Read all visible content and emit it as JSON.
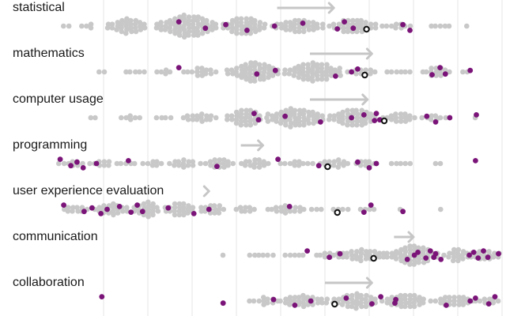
{
  "chart_data": {
    "type": "beeswarm",
    "colors": {
      "dot": "#c8c8c8",
      "highlight": "#7b1479",
      "marker_stroke": "#111111",
      "arrow": "#c6c6c6",
      "grid": "#e6e6e6"
    },
    "x_range": [
      0,
      100
    ],
    "grid_values": [
      10,
      20,
      30,
      40,
      50,
      60,
      70,
      80,
      90,
      100
    ],
    "rows": [
      {
        "label": "statistical",
        "arrow": {
          "from": 49.2,
          "to": 62.0
        },
        "marker": 69.4,
        "highlights": [
          27.0,
          33.0,
          37.6,
          42.4,
          48.6,
          55.0,
          62.8,
          64.4,
          66.4,
          77.6,
          79.2
        ],
        "groups": [
          [
            1.0,
            3.0,
            0.6
          ],
          [
            5.0,
            8.0,
            1.6
          ],
          [
            11.0,
            20.0,
            4.2
          ],
          [
            22.0,
            36.0,
            6.5
          ],
          [
            37.0,
            47.0,
            5.2
          ],
          [
            48.0,
            60.0,
            4.0
          ],
          [
            61.0,
            72.0,
            4.2
          ],
          [
            73.0,
            80.0,
            2.0
          ],
          [
            84.0,
            89.0,
            1.2
          ],
          [
            92.0,
            93.0,
            0.6
          ]
        ]
      },
      {
        "label": "mathematics",
        "arrow": {
          "from": 56.6,
          "to": 70.6
        },
        "marker": 69.0,
        "highlights": [
          27.0,
          44.6,
          48.8,
          62.4,
          66.0,
          67.4,
          84.2,
          86.0,
          87.2,
          92.8
        ],
        "groups": [
          [
            9.0,
            11.0,
            0.6
          ],
          [
            15.0,
            20.0,
            1.2
          ],
          [
            22.0,
            26.0,
            1.6
          ],
          [
            28.0,
            36.0,
            2.4
          ],
          [
            38.0,
            50.0,
            6.0
          ],
          [
            51.0,
            64.0,
            5.5
          ],
          [
            65.0,
            72.0,
            2.6
          ],
          [
            74.0,
            80.0,
            1.4
          ],
          [
            82.0,
            89.0,
            3.2
          ],
          [
            91.0,
            93.0,
            0.6
          ]
        ]
      },
      {
        "label": "computer usage",
        "arrow": {
          "from": 56.6,
          "to": 69.6
        },
        "marker": 73.4,
        "highlights": [
          44.0,
          45.0,
          51.0,
          59.0,
          66.0,
          68.8,
          71.2,
          71.6,
          72.4,
          83.0,
          85.0,
          88.2,
          94.2
        ],
        "groups": [
          [
            7.0,
            9.0,
            0.6
          ],
          [
            14.0,
            19.0,
            1.4
          ],
          [
            22.0,
            26.0,
            1.4
          ],
          [
            28.0,
            36.0,
            2.4
          ],
          [
            38.0,
            46.0,
            4.8
          ],
          [
            47.0,
            60.0,
            5.5
          ],
          [
            61.0,
            72.0,
            5.0
          ],
          [
            73.0,
            81.0,
            3.2
          ],
          [
            82.0,
            88.0,
            1.8
          ],
          [
            94.0,
            95.0,
            0.3
          ]
        ]
      },
      {
        "label": "programming",
        "arrow": {
          "from": 41.0,
          "to": 46.0
        },
        "marker": 60.6,
        "highlights": [
          0.2,
          2.6,
          4.0,
          5.4,
          8.4,
          15.6,
          35.6,
          49.4,
          58.6,
          67.4,
          70.0,
          71.6,
          94.0
        ],
        "groups": [
          [
            0.0,
            6.0,
            1.8
          ],
          [
            7.0,
            12.0,
            2.2
          ],
          [
            13.0,
            18.0,
            1.8
          ],
          [
            19.0,
            24.0,
            1.6
          ],
          [
            25.0,
            31.0,
            2.4
          ],
          [
            32.0,
            40.0,
            3.0
          ],
          [
            41.0,
            48.0,
            2.6
          ],
          [
            50.0,
            58.0,
            2.0
          ],
          [
            59.0,
            66.0,
            2.6
          ],
          [
            67.0,
            72.0,
            1.6
          ],
          [
            75.0,
            80.0,
            0.6
          ],
          [
            85.0,
            87.0,
            0.6
          ]
        ]
      },
      {
        "label": "user experience evaluation",
        "arrow": {
          "from": 33.8,
          "to": 33.8
        },
        "marker": 62.8,
        "highlights": [
          1.0,
          5.6,
          7.4,
          9.4,
          10.8,
          13.6,
          16.2,
          17.6,
          18.8,
          24.6,
          30.4,
          33.8,
          52.0,
          68.8,
          70.4,
          77.6
        ],
        "groups": [
          [
            1.0,
            7.0,
            2.2
          ],
          [
            8.0,
            16.0,
            3.6
          ],
          [
            17.0,
            23.0,
            5.0
          ],
          [
            24.0,
            31.0,
            4.0
          ],
          [
            32.0,
            38.0,
            3.2
          ],
          [
            40.0,
            45.0,
            2.0
          ],
          [
            47.0,
            56.0,
            2.4
          ],
          [
            57.0,
            60.0,
            1.2
          ],
          [
            62.0,
            66.0,
            0.6
          ],
          [
            68.0,
            72.0,
            0.6
          ],
          [
            77.0,
            78.0,
            0.3
          ],
          [
            86.0,
            87.0,
            0.3
          ]
        ]
      },
      {
        "label": "communication",
        "arrow": {
          "from": 75.6,
          "to": 80.0
        },
        "marker": 71.0,
        "highlights": [
          56.0,
          61.0,
          63.4,
          78.6,
          80.2,
          81.0,
          82.8,
          83.8,
          84.6,
          85.0,
          86.2,
          92.6,
          93.6,
          94.6,
          95.8,
          96.8,
          99.2
        ],
        "groups": [
          [
            37.0,
            38.0,
            0.3
          ],
          [
            43.0,
            49.0,
            0.6
          ],
          [
            51.0,
            56.0,
            0.6
          ],
          [
            58.0,
            63.0,
            2.0
          ],
          [
            63.0,
            74.0,
            3.6
          ],
          [
            74.0,
            86.0,
            5.5
          ],
          [
            87.0,
            93.0,
            4.0
          ],
          [
            93.0,
            100.0,
            3.4
          ]
        ]
      },
      {
        "label": "collaboration",
        "arrow": {
          "from": 60.0,
          "to": 70.6
        },
        "marker": 62.2,
        "highlights": [
          9.6,
          37.0,
          48.4,
          53.2,
          56.8,
          64.8,
          70.6,
          72.6,
          75.8,
          76.0,
          87.4,
          92.8,
          94.0,
          97.0,
          98.4
        ],
        "groups": [
          [
            43.0,
            50.0,
            2.2
          ],
          [
            50.0,
            61.0,
            3.6
          ],
          [
            62.0,
            72.0,
            4.4
          ],
          [
            73.0,
            83.0,
            4.2
          ],
          [
            84.0,
            94.0,
            3.2
          ],
          [
            94.0,
            100.0,
            2.0
          ]
        ]
      }
    ]
  }
}
